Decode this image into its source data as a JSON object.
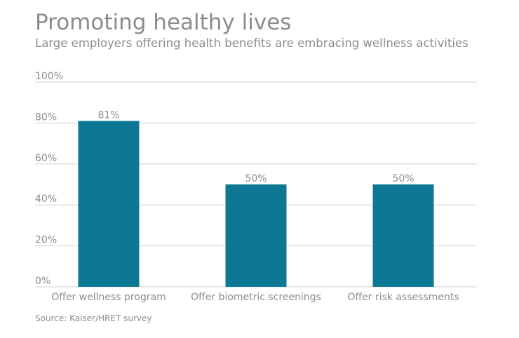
{
  "title": "Promoting healthy lives",
  "subtitle": "Large employers offering health benefits are embracing wellness activities",
  "source": "Source: Kaiser/HRET survey",
  "chart_data": {
    "type": "bar",
    "categories": [
      "Offer wellness program",
      "Offer biometric screenings",
      "Offer risk assessments"
    ],
    "values": [
      81,
      50,
      50
    ],
    "data_labels": [
      "81%",
      "50%",
      "50%"
    ],
    "yticks": [
      "0%",
      "20%",
      "40%",
      "60%",
      "80%",
      "100%"
    ],
    "ylim": [
      0,
      100
    ],
    "grid": true,
    "legend": "none",
    "bar_color": "#0c7893",
    "grid_color": "#d0d0d0",
    "text_color": "#8c8c8c"
  }
}
